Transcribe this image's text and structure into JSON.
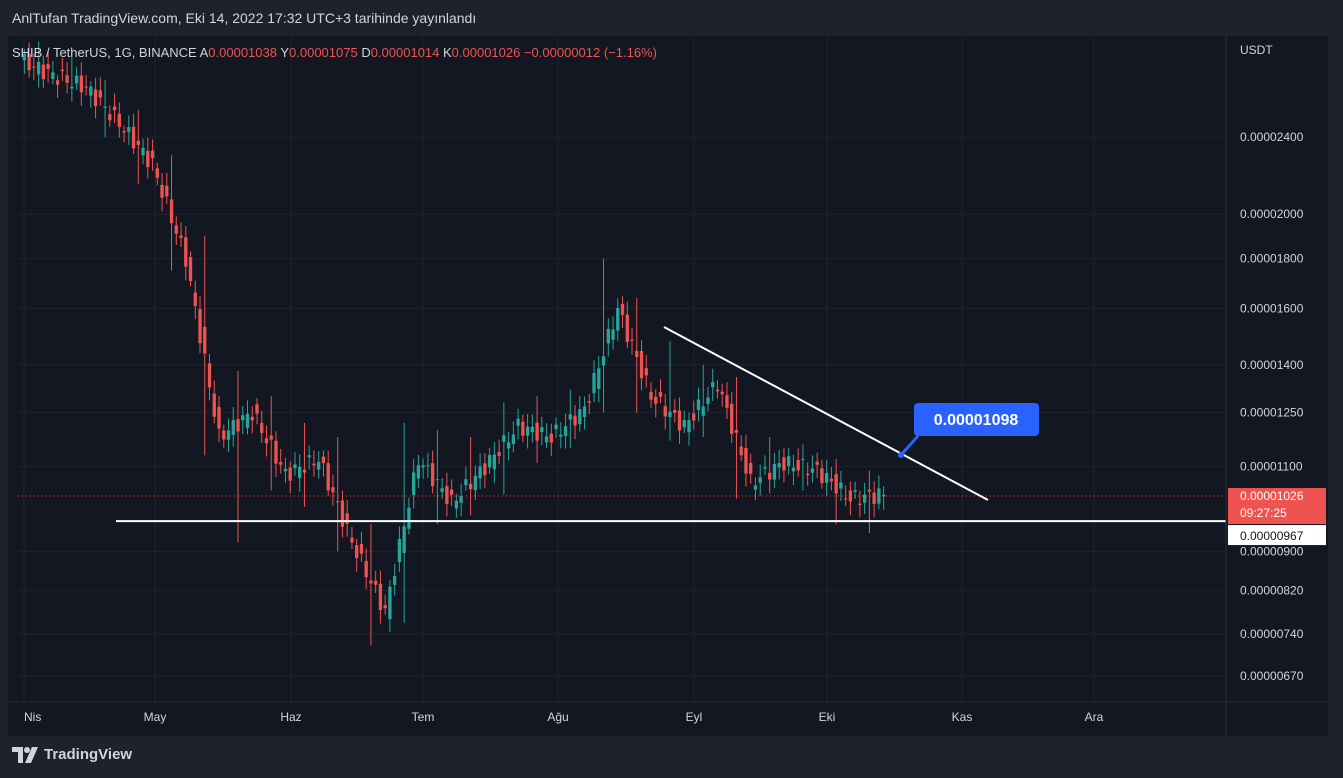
{
  "header": {
    "published": "AnlTufan TradingView.com, Eki 14, 2022 17:32 UTC+3 tarihinde yayınlandı"
  },
  "legend": {
    "symbol": "SHIB / TetherUS, 1G, BINANCE",
    "open_label": "A",
    "open": "0.00001038",
    "high_label": "Y",
    "high": "0.00001075",
    "low_label": "D",
    "low": "0.00001014",
    "close_label": "K",
    "close": "0.00001026",
    "change": "−0.00000012 (−1.16%)"
  },
  "footer": {
    "brand": "TradingView",
    "logo_icon": "tradingview-logo-icon"
  },
  "colors": {
    "background": "#131722",
    "up": "#26a69a",
    "down": "#ef5350",
    "grid": "#1f2330",
    "axis_text": "#d1d4dc",
    "line": "#ffffff",
    "callout": "#2962ff",
    "price_label": "#ef5350"
  },
  "chart_data": {
    "type": "candlestick",
    "y_unit": "USDT",
    "y_scale": "log",
    "y_ticks": [
      "0.00002400",
      "0.00002000",
      "0.00001800",
      "0.00001600",
      "0.00001400",
      "0.00001250",
      "0.00001100",
      "0.00000900",
      "0.00000820",
      "0.00000740",
      "0.00000670"
    ],
    "x_ticks": [
      "Nis",
      "May",
      "Haz",
      "Tem",
      "Ağu",
      "Eyl",
      "Eki",
      "Kas",
      "Ara"
    ],
    "ylim": [
      6.3e-06,
      3.05e-05
    ],
    "candles": [
      [
        "Nis",
        2.88e-05,
        3.01e-05,
        2.7e-05,
        2.78e-05
      ],
      [
        "Nis",
        2.78e-05,
        2.9e-05,
        2.62e-05,
        2.7e-05
      ],
      [
        "May",
        2.7e-05,
        2.75e-05,
        2.4e-05,
        2.48e-05
      ],
      [
        "May",
        2.48e-05,
        2.56e-05,
        2.15e-05,
        2.25e-05
      ],
      [
        "May",
        2.25e-05,
        2.3e-05,
        1.75e-05,
        1.8e-05
      ],
      [
        "May",
        1.8e-05,
        1.9e-05,
        1.13e-05,
        1.18e-05
      ],
      [
        "May",
        1.18e-05,
        1.38e-05,
        9.2e-06,
        1.25e-05
      ],
      [
        "Haz",
        1.25e-05,
        1.3e-05,
        1.04e-05,
        1.08e-05
      ],
      [
        "Haz",
        1.08e-05,
        1.22e-05,
        1e-05,
        1.12e-05
      ],
      [
        "Haz",
        1.12e-05,
        1.18e-05,
        9e-06,
        9.2e-06
      ],
      [
        "Haz",
        9.2e-06,
        9.6e-06,
        7.2e-06,
        7.8e-06
      ],
      [
        "Tem",
        7.8e-06,
        1.22e-05,
        7.6e-06,
        1.12e-05
      ],
      [
        "Tem",
        1.12e-05,
        1.2e-05,
        9.6e-06,
        1.01e-05
      ],
      [
        "Tem",
        1.01e-05,
        1.18e-05,
        9.8e-06,
        1.1e-05
      ],
      [
        "Tem",
        1.1e-05,
        1.28e-05,
        1.03e-05,
        1.21e-05
      ],
      [
        "Ağu",
        1.21e-05,
        1.3e-05,
        1.11e-05,
        1.18e-05
      ],
      [
        "Ağu",
        1.18e-05,
        1.32e-05,
        1.15e-05,
        1.26e-05
      ],
      [
        "Ağu",
        1.26e-05,
        1.8e-05,
        1.25e-05,
        1.6e-05
      ],
      [
        "Ağu",
        1.6e-05,
        1.64e-05,
        1.25e-05,
        1.3e-05
      ],
      [
        "Eyl",
        1.3e-05,
        1.48e-05,
        1.17e-05,
        1.21e-05
      ],
      [
        "Eyl",
        1.21e-05,
        1.4e-05,
        1.18e-05,
        1.34e-05
      ],
      [
        "Eyl",
        1.34e-05,
        1.36e-05,
        1.02e-05,
        1.06e-05
      ],
      [
        "Eyl",
        1.06e-05,
        1.18e-05,
        1.04e-05,
        1.11e-05
      ],
      [
        "Eki",
        1.11e-05,
        1.16e-05,
        1.04e-05,
        1.09e-05
      ],
      [
        "Eki",
        1.09e-05,
        1.12e-05,
        9.6e-06,
        1.02e-05
      ],
      [
        "Eki",
        1.02e-05,
        1.09e-05,
        9.4e-06,
        1.03e-05
      ]
    ],
    "annotations": {
      "support_level": 9.67e-06,
      "support_label": "0.00000967",
      "trendline_callout": "0.00001098",
      "current_price": "0.00001026",
      "countdown": "09:27:25"
    }
  }
}
